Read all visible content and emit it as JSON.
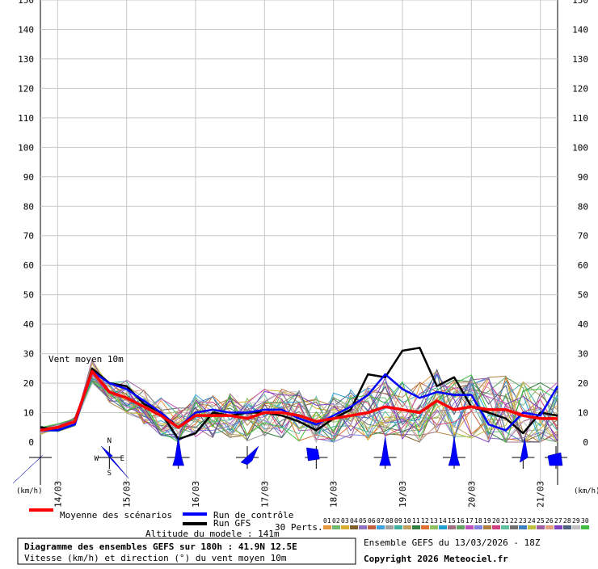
{
  "chart_data": {
    "type": "line",
    "title": "Diagramme des ensembles GEFS sur 180h : 41.9N 12.5E",
    "subtitle": "Vitesse (km/h) et direction (°) du vent moyen 10m",
    "annotation": "Vent moyen 10m",
    "altitude_label": "Altitude du modele : 141m",
    "ensemble_label": "Ensemble GEFS du 13/03/2026 - 18Z",
    "copyright": "Copyright 2026 Meteociel.fr",
    "unit_left": "(km/h)",
    "unit_right": "(km/h)",
    "y_ticks": [
      0,
      10,
      20,
      30,
      40,
      50,
      60,
      70,
      80,
      90,
      100,
      110,
      120,
      130,
      140,
      150
    ],
    "ylim": [
      0,
      150
    ],
    "x_hours": [
      0,
      180
    ],
    "date_ticks": [
      {
        "label": "14/03",
        "h": 6
      },
      {
        "label": "15/03",
        "h": 30
      },
      {
        "label": "16/03",
        "h": 54
      },
      {
        "label": "17/03",
        "h": 78
      },
      {
        "label": "18/03",
        "h": 102
      },
      {
        "label": "19/03",
        "h": 126
      },
      {
        "label": "20/03",
        "h": 150
      },
      {
        "label": "21/03",
        "h": 174
      }
    ],
    "legend": {
      "mean": "Moyenne des scénarios",
      "control": "Run de contrôle",
      "gfs": "Run GFS",
      "perts": "30 Perts."
    },
    "pert_labels": [
      "01",
      "02",
      "03",
      "04",
      "05",
      "06",
      "07",
      "08",
      "09",
      "10",
      "11",
      "12",
      "13",
      "14",
      "15",
      "16",
      "17",
      "18",
      "19",
      "20",
      "21",
      "22",
      "23",
      "24",
      "25",
      "26",
      "27",
      "28",
      "29",
      "30"
    ],
    "pert_colors": [
      "#e8983c",
      "#70b870",
      "#d8b030",
      "#806028",
      "#9070c0",
      "#c06040",
      "#40a0e0",
      "#a0a0a0",
      "#40b0a0",
      "#c0a060",
      "#308040",
      "#e07030",
      "#90c060",
      "#20a0d0",
      "#a07080",
      "#60a060",
      "#c050c0",
      "#8080e0",
      "#b08040",
      "#d04080",
      "#60c0a0",
      "#707070",
      "#4080c0",
      "#c0c040",
      "#a060a0",
      "#e0a080",
      "#8040c0",
      "#506080",
      "#c0c0c0",
      "#40c040"
    ],
    "series": [
      {
        "name": "Moyenne des scénarios",
        "color": "#ff0000",
        "width": 3.5,
        "x": [
          0,
          6,
          12,
          18,
          24,
          30,
          36,
          42,
          48,
          54,
          60,
          66,
          72,
          78,
          84,
          90,
          96,
          102,
          108,
          114,
          120,
          126,
          132,
          138,
          144,
          150,
          156,
          162,
          168,
          174,
          180
        ],
        "values": [
          4,
          5,
          7,
          24,
          17,
          15,
          12,
          9,
          5,
          9,
          9,
          9,
          8,
          10,
          10,
          9,
          7,
          8,
          9,
          10,
          12,
          11,
          10,
          14,
          11,
          12,
          11,
          11,
          9,
          8,
          8
        ]
      },
      {
        "name": "Run de contrôle",
        "color": "#0000ff",
        "width": 2.5,
        "x": [
          0,
          6,
          12,
          18,
          24,
          30,
          36,
          42,
          48,
          54,
          60,
          66,
          72,
          78,
          84,
          90,
          96,
          102,
          108,
          114,
          120,
          126,
          132,
          138,
          144,
          150,
          156,
          162,
          168,
          174,
          180
        ],
        "values": [
          4,
          4,
          6,
          24,
          20,
          18,
          14,
          10,
          5,
          10,
          11,
          10,
          10,
          11,
          11,
          8,
          6,
          9,
          12,
          16,
          23,
          18,
          15,
          17,
          16,
          16,
          6,
          4,
          10,
          9,
          19
        ]
      },
      {
        "name": "Run GFS",
        "color": "#000000",
        "width": 2.5,
        "x": [
          0,
          6,
          12,
          18,
          24,
          30,
          36,
          42,
          48,
          54,
          60,
          66,
          72,
          78,
          84,
          90,
          96,
          102,
          108,
          114,
          120,
          126,
          132,
          138,
          144,
          150,
          156,
          162,
          168,
          174,
          180
        ],
        "values": [
          5,
          4,
          6,
          25,
          20,
          19,
          13,
          10,
          1,
          3,
          10,
          9,
          10,
          10,
          9,
          7,
          4,
          8,
          11,
          23,
          22,
          31,
          32,
          19,
          22,
          12,
          10,
          8,
          3,
          10,
          9
        ]
      }
    ],
    "directions": [
      {
        "h": 0,
        "kind": "needle-sw"
      },
      {
        "h": 24,
        "kind": "rose"
      },
      {
        "h": 48,
        "kind": "needle-n"
      },
      {
        "h": 72,
        "kind": "blob-ne"
      },
      {
        "h": 96,
        "kind": "blob-w"
      },
      {
        "h": 120,
        "kind": "needle-n"
      },
      {
        "h": 144,
        "kind": "needle-n"
      },
      {
        "h": 168,
        "kind": "needle-nne"
      },
      {
        "h": 180,
        "kind": "blob-s"
      }
    ],
    "compass": {
      "n": "N",
      "s": "S",
      "w": "W",
      "e": "E"
    }
  }
}
